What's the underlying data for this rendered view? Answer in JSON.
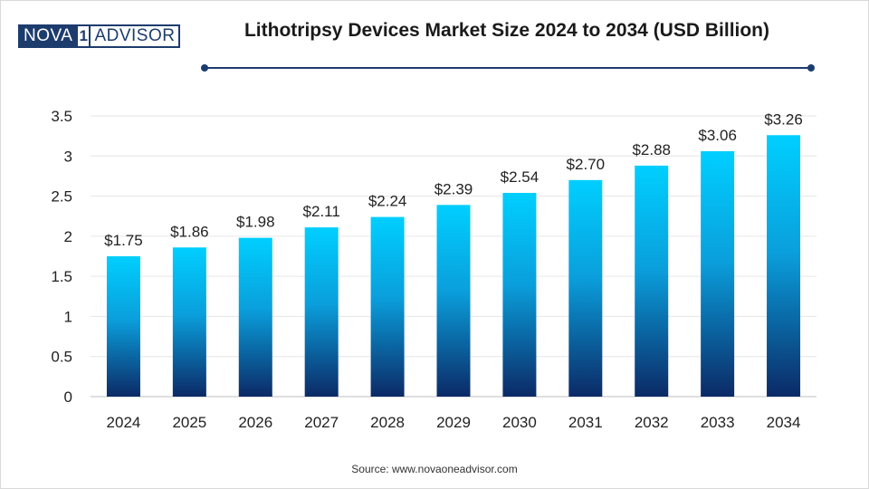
{
  "brand": {
    "part1": "NOVA",
    "mark": "1",
    "part2": "ADVISOR"
  },
  "colors": {
    "navy": "#1d3c6e",
    "bar_top": "#00cfff",
    "bar_bottom": "#0b2a66"
  },
  "source": "Source: www.novaoneadvisor.com",
  "chart_data": {
    "type": "bar",
    "title": "Lithotripsy Devices Market Size 2024 to 2034 (USD Billion)",
    "categories": [
      "2024",
      "2025",
      "2026",
      "2027",
      "2028",
      "2029",
      "2030",
      "2031",
      "2032",
      "2033",
      "2034"
    ],
    "values": [
      1.75,
      1.86,
      1.98,
      2.11,
      2.24,
      2.39,
      2.54,
      2.7,
      2.88,
      3.06,
      3.26
    ],
    "data_labels": [
      "$1.75",
      "$1.86",
      "$1.98",
      "$2.11",
      "$2.24",
      "$2.39",
      "$2.54",
      "$2.70",
      "$2.88",
      "$3.06",
      "$3.26"
    ],
    "yticks": [
      "0",
      "0.5",
      "1",
      "1.5",
      "2",
      "2.5",
      "3",
      "3.5"
    ],
    "ylim": [
      0,
      3.5
    ],
    "grid": true,
    "legend": "none"
  }
}
